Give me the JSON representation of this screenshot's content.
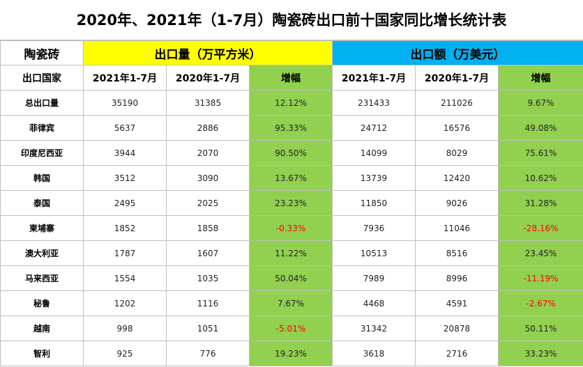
{
  "title": "2020年、2021年（1-7月）陶瓷砖出口前十国家同比增长统计表",
  "header": {
    "corner": "陶瓷砖",
    "group_volume": "出口量（万平方米）",
    "group_value": "出口额（万美元）",
    "country_col": "出口国家",
    "vol_2021": "2021年1-7月",
    "vol_2020": "2020年1-7月",
    "vol_growth": "增幅",
    "val_2021": "2021年1-7月",
    "val_2020": "2020年1-7月",
    "val_growth": "增幅"
  },
  "rows": [
    {
      "country": "总出口量",
      "vol_2021": "35190",
      "vol_2020": "31385",
      "vol_growth": "12.12%",
      "val_2021": "231433",
      "val_2020": "211026",
      "val_growth": "9.67%"
    },
    {
      "country": "菲律宾",
      "vol_2021": "5637",
      "vol_2020": "2886",
      "vol_growth": "95.33%",
      "val_2021": "24712",
      "val_2020": "16576",
      "val_growth": "49.08%"
    },
    {
      "country": "印度尼西亚",
      "vol_2021": "3944",
      "vol_2020": "2070",
      "vol_growth": "90.50%",
      "val_2021": "14099",
      "val_2020": "8029",
      "val_growth": "75.61%"
    },
    {
      "country": "韩国",
      "vol_2021": "3512",
      "vol_2020": "3090",
      "vol_growth": "13.67%",
      "val_2021": "13739",
      "val_2020": "12420",
      "val_growth": "10.62%"
    },
    {
      "country": "泰国",
      "vol_2021": "2495",
      "vol_2020": "2025",
      "vol_growth": "23.23%",
      "val_2021": "11850",
      "val_2020": "9026",
      "val_growth": "31.28%"
    },
    {
      "country": "柬埔寨",
      "vol_2021": "1852",
      "vol_2020": "1858",
      "vol_growth": "-0.33%",
      "val_2021": "7936",
      "val_2020": "11046",
      "val_growth": "-28.16%"
    },
    {
      "country": "澳大利亚",
      "vol_2021": "1787",
      "vol_2020": "1607",
      "vol_growth": "11.22%",
      "val_2021": "10513",
      "val_2020": "8516",
      "val_growth": "23.45%"
    },
    {
      "country": "马来西亚",
      "vol_2021": "1554",
      "vol_2020": "1035",
      "vol_growth": "50.04%",
      "val_2021": "7989",
      "val_2020": "8996",
      "val_growth": "-11.19%"
    },
    {
      "country": "秘鲁",
      "vol_2021": "1202",
      "vol_2020": "1116",
      "vol_growth": "7.67%",
      "val_2021": "4468",
      "val_2020": "4591",
      "val_growth": "-2.67%"
    },
    {
      "country": "越南",
      "vol_2021": "998",
      "vol_2020": "1051",
      "vol_growth": "-5.01%",
      "val_2021": "31342",
      "val_2020": "20878",
      "val_growth": "50.11%"
    },
    {
      "country": "智利",
      "vol_2021": "925",
      "vol_2020": "776",
      "vol_growth": "19.23%",
      "val_2021": "3618",
      "val_2020": "2716",
      "val_growth": "33.23%"
    }
  ],
  "colors": {
    "volume_header": "#ffff00",
    "value_header": "#00b0f0",
    "growth_column": "#92d050",
    "negative_text": "#ff0000",
    "grid": "#bfbfbf"
  }
}
